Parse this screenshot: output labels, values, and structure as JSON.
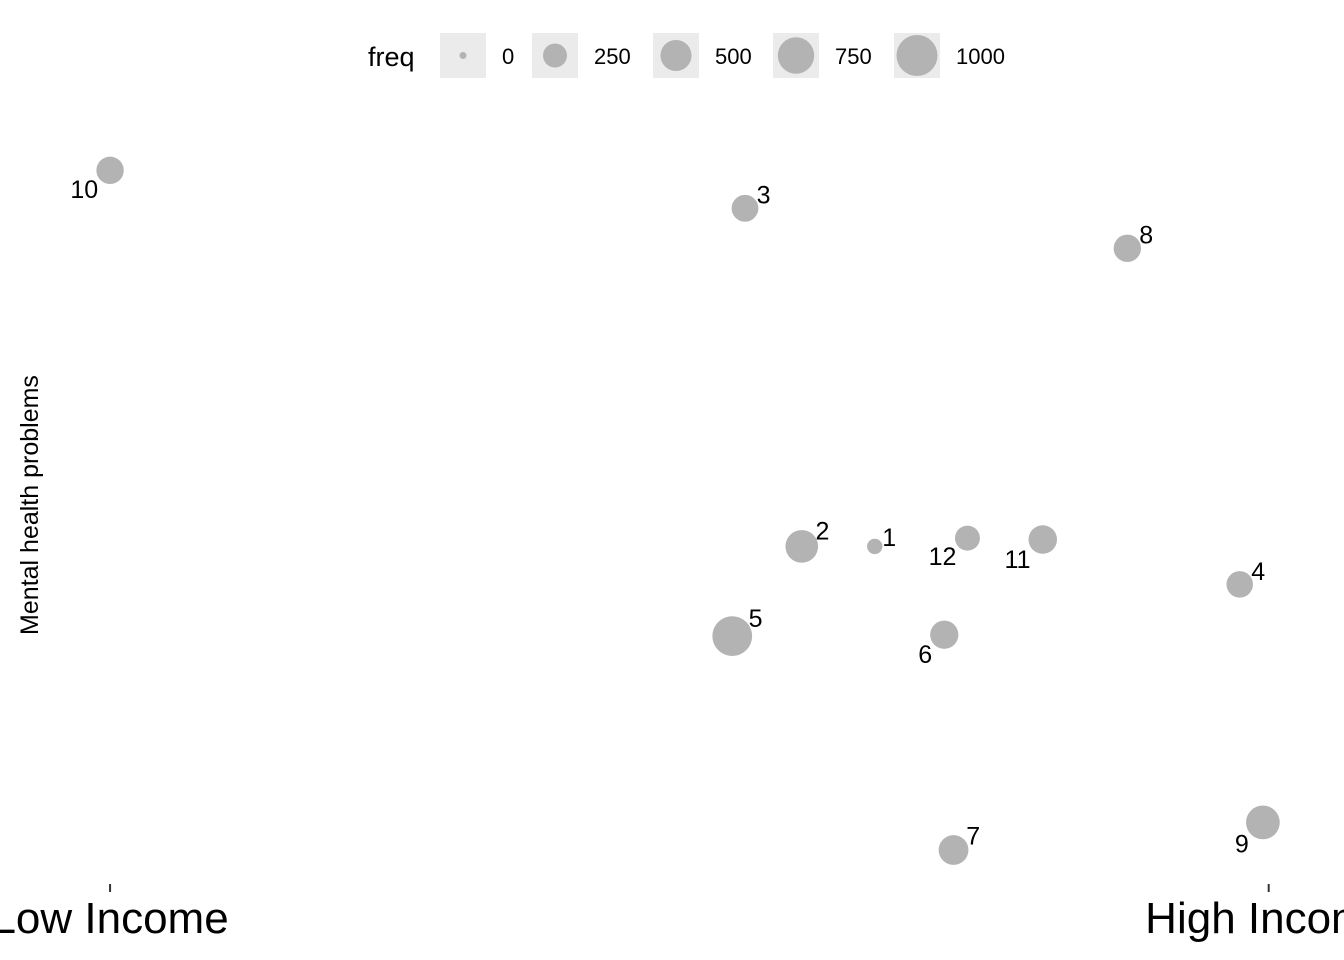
{
  "chart_data": {
    "type": "scatter",
    "title": "",
    "xlabel": "",
    "ylabel": "Mental health problems",
    "grid": false,
    "legend_position": "top",
    "x_ticks": [
      {
        "value": 0,
        "label": "Low Income"
      },
      {
        "value": 1,
        "label": "High Income"
      }
    ],
    "xlim": [
      -0.095,
      1.065
    ],
    "ylim": [
      0.0,
      1.0
    ],
    "size_variable": "freq",
    "size_legend": {
      "title": "freq",
      "breaks": [
        0,
        250,
        500,
        750,
        1000
      ]
    },
    "point_color": "#b3b3b3",
    "legend_key_background": "#ebebeb",
    "points": [
      {
        "label": "1",
        "x": 0.66,
        "y": 0.44,
        "freq": 60,
        "label_pos": "top-right"
      },
      {
        "label": "2",
        "x": 0.597,
        "y": 0.44,
        "freq": 570,
        "label_pos": "top-right"
      },
      {
        "label": "3",
        "x": 0.548,
        "y": 0.93,
        "freq": 340,
        "label_pos": "top-right"
      },
      {
        "label": "4",
        "x": 0.975,
        "y": 0.385,
        "freq": 330,
        "label_pos": "top-right"
      },
      {
        "label": "5",
        "x": 0.537,
        "y": 0.31,
        "freq": 930,
        "label_pos": "top-right"
      },
      {
        "label": "6",
        "x": 0.72,
        "y": 0.312,
        "freq": 390,
        "label_pos": "bottom-left"
      },
      {
        "label": "7",
        "x": 0.728,
        "y": 0.0,
        "freq": 450,
        "label_pos": "top-right"
      },
      {
        "label": "8",
        "x": 0.878,
        "y": 0.872,
        "freq": 360,
        "label_pos": "top-right"
      },
      {
        "label": "9",
        "x": 0.995,
        "y": 0.04,
        "freq": 620,
        "label_pos": "bottom-left"
      },
      {
        "label": "10",
        "x": 0.0,
        "y": 0.985,
        "freq": 360,
        "label_pos": "bottom-left"
      },
      {
        "label": "11",
        "x": 0.805,
        "y": 0.45,
        "freq": 400,
        "label_pos": "bottom-left"
      },
      {
        "label": "12",
        "x": 0.74,
        "y": 0.452,
        "freq": 280,
        "label_pos": "bottom-left"
      }
    ]
  }
}
